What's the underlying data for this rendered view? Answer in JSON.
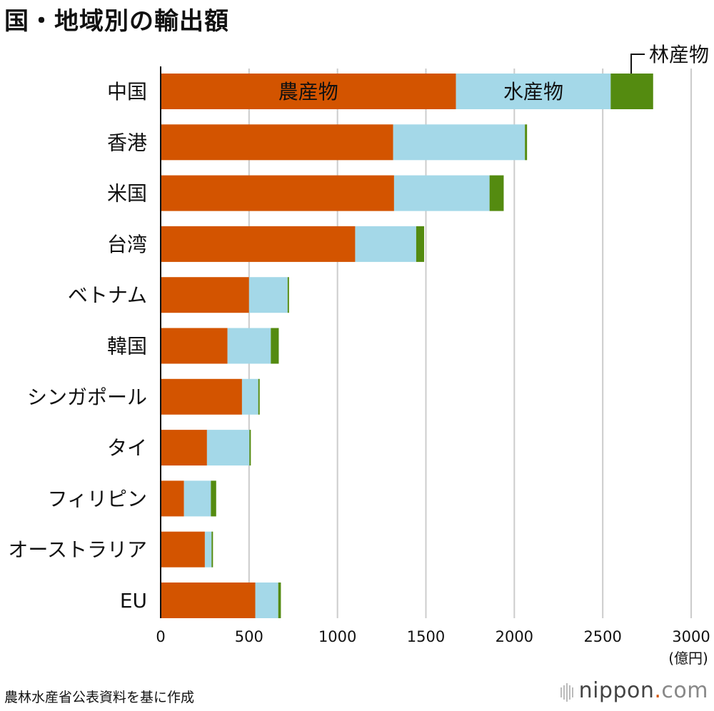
{
  "title": "国・地域別の輸出額",
  "source": "農林水産省公表資料を基に作成",
  "brand": {
    "name": "nippon",
    "dot": ".",
    "tld": "com"
  },
  "colors": {
    "農産物": "#d35400",
    "水産物": "#a4d8e8",
    "林産物": "#548b10",
    "grid": "#cccccc",
    "axis": "#111111"
  },
  "chart_data": {
    "type": "bar",
    "orientation": "horizontal",
    "stacked": true,
    "title": "国・地域別の輸出額",
    "categories": [
      "中国",
      "香港",
      "米国",
      "台湾",
      "ベトナム",
      "韓国",
      "シンガポール",
      "タイ",
      "フィリピン",
      "オーストラリア",
      "EU"
    ],
    "series": [
      {
        "name": "農産物",
        "values": [
          1670,
          1315,
          1320,
          1100,
          500,
          378,
          460,
          262,
          132,
          250,
          535
        ]
      },
      {
        "name": "水産物",
        "values": [
          875,
          745,
          540,
          345,
          218,
          245,
          92,
          240,
          152,
          38,
          130
        ]
      },
      {
        "name": "林産物",
        "values": [
          240,
          12,
          80,
          45,
          8,
          45,
          8,
          8,
          30,
          8,
          15
        ]
      }
    ],
    "xlim": [
      0,
      3000
    ],
    "xticks": [
      0,
      500,
      1000,
      1500,
      2000,
      2500,
      3000
    ],
    "xunit": "(億円)",
    "grid": true,
    "annotations": {
      "in_bar": [
        "農産物",
        "水産物"
      ],
      "callout": "林産物"
    }
  }
}
